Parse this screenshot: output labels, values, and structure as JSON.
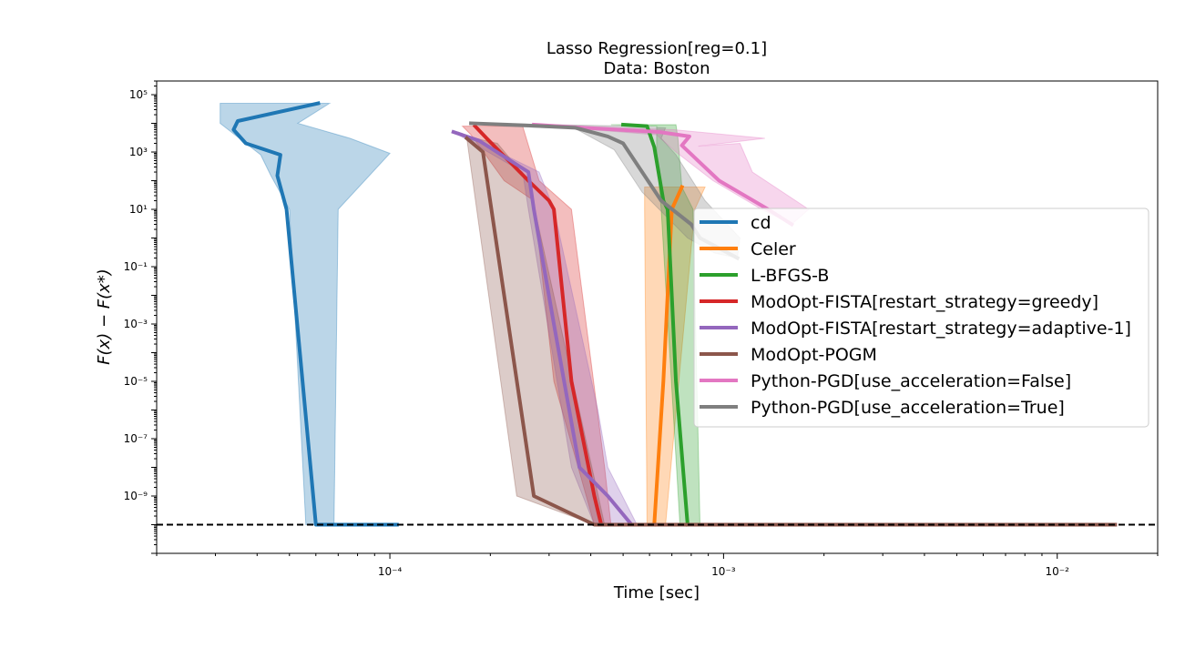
{
  "chart_data": {
    "type": "line",
    "title": "Lasso Regression[reg=0.1]",
    "subtitle": "Data: Boston",
    "xlabel": "Time [sec]",
    "ylabel": "F(x) − F(x*)",
    "xscale": "log",
    "yscale": "log",
    "xlim": [
      2e-05,
      0.02
    ],
    "ylim": [
      1e-11,
      300000
    ],
    "x_ticks": [
      {
        "value": 0.0001,
        "label": "10⁻⁴"
      },
      {
        "value": 0.001,
        "label": "10⁻³"
      },
      {
        "value": 0.01,
        "label": "10⁻²"
      }
    ],
    "y_ticks": [
      {
        "value": 1e-09,
        "label": "10⁻⁹"
      },
      {
        "value": 1e-07,
        "label": "10⁻⁷"
      },
      {
        "value": 1e-05,
        "label": "10⁻⁵"
      },
      {
        "value": 0.001,
        "label": "10⁻³"
      },
      {
        "value": 0.1,
        "label": "10⁻¹"
      },
      {
        "value": 10,
        "label": "10¹"
      },
      {
        "value": 1000,
        "label": "10³"
      },
      {
        "value": 100000,
        "label": "10⁵"
      }
    ],
    "reference_line": {
      "y": 1e-10,
      "style": "dashed",
      "color": "#000000"
    },
    "legend_position": "center-right",
    "series": [
      {
        "name": "cd",
        "color": "#1f77b4",
        "x": [
          6.1e-05,
          3.5e-05,
          3.4e-05,
          3.7e-05,
          4.7e-05,
          4.6e-05,
          4.9e-05,
          6e-05,
          6e-05,
          0.000105
        ],
        "y": [
          50000,
          12000,
          6000,
          2000,
          800,
          150,
          10,
          1e-10,
          1e-10,
          1e-10
        ],
        "band_lower": [
          [
            3.1e-05,
            50000
          ],
          [
            3.1e-05,
            10000
          ],
          [
            3.7e-05,
            2000
          ],
          [
            4.1e-05,
            800
          ],
          [
            4.4e-05,
            150
          ],
          [
            5e-05,
            10
          ],
          [
            5.6e-05,
            1e-10
          ],
          [
            0.000105,
            1e-10
          ]
        ],
        "band_upper": [
          [
            6.6e-05,
            50000
          ],
          [
            5.3e-05,
            10000
          ],
          [
            7.6e-05,
            3000
          ],
          [
            0.0001,
            900
          ],
          [
            7e-05,
            10
          ],
          [
            6.8e-05,
            1e-10
          ],
          [
            0.000105,
            1e-10
          ]
        ]
      },
      {
        "name": "Celer",
        "color": "#ff7f0e",
        "x": [
          0.00075,
          0.0007,
          0.00066,
          0.00062,
          0.00062
        ],
        "y": [
          60,
          10,
          1e-05,
          1e-10,
          1e-10
        ],
        "band_lower": [
          [
            0.00058,
            60
          ],
          [
            0.00058,
            10
          ],
          [
            0.00059,
            1e-10
          ]
        ],
        "band_upper": [
          [
            0.00088,
            60
          ],
          [
            0.00082,
            10
          ],
          [
            0.00067,
            1e-10
          ]
        ]
      },
      {
        "name": "L-BFGS-B",
        "color": "#2ca02c",
        "x": [
          0.0005,
          0.00059,
          0.00062,
          0.00066,
          0.00068,
          0.00072,
          0.00078,
          0.00078
        ],
        "y": [
          9000,
          8000,
          1500,
          20,
          10,
          1e-05,
          1e-10,
          1e-10
        ],
        "band_lower": [
          [
            0.00046,
            9000
          ],
          [
            0.00063,
            8000
          ],
          [
            0.00063,
            1000
          ],
          [
            0.00065,
            10
          ],
          [
            0.00074,
            1e-10
          ]
        ],
        "band_upper": [
          [
            0.00072,
            9000
          ],
          [
            0.00073,
            3000
          ],
          [
            0.00075,
            60
          ],
          [
            0.00081,
            10
          ],
          [
            0.00085,
            1e-10
          ]
        ]
      },
      {
        "name": "ModOpt-FISTA[restart_strategy=greedy]",
        "color": "#d62728",
        "x": [
          0.00018,
          0.000195,
          0.00026,
          0.0003,
          0.00031,
          0.00035,
          0.00041,
          0.00043,
          0.0149
        ],
        "y": [
          8000,
          3000,
          100,
          20,
          10,
          1e-05,
          1e-09,
          1e-10,
          1e-10
        ],
        "band_lower": [
          [
            0.000165,
            8000
          ],
          [
            0.000175,
            4000
          ],
          [
            0.00022,
            100
          ],
          [
            0.00027,
            20
          ],
          [
            0.00031,
            1e-05
          ],
          [
            0.00041,
            1e-10
          ],
          [
            0.0149,
            1e-10
          ]
        ],
        "band_upper": [
          [
            0.00025,
            8000
          ],
          [
            0.00028,
            100
          ],
          [
            0.00035,
            10
          ],
          [
            0.00044,
            1e-08
          ],
          [
            0.00046,
            1e-10
          ],
          [
            0.0149,
            1e-10
          ]
        ]
      },
      {
        "name": "ModOpt-FISTA[restart_strategy=adaptive-1]",
        "color": "#9467bd",
        "x": [
          0.000155,
          0.000185,
          0.00026,
          0.00027,
          0.00031,
          0.00037,
          0.00045,
          0.00053,
          0.0098
        ],
        "y": [
          5000,
          2500,
          200,
          10,
          0.001,
          1e-08,
          1e-09,
          1e-10,
          1e-10
        ],
        "band_lower": [
          [
            0.000155,
            5000
          ],
          [
            0.00025,
            200
          ],
          [
            0.00026,
            10
          ],
          [
            0.00035,
            1e-08
          ],
          [
            0.00041,
            1e-10
          ],
          [
            0.0098,
            1e-10
          ]
        ],
        "band_upper": [
          [
            0.00016,
            5000
          ],
          [
            0.00028,
            200
          ],
          [
            0.00031,
            10
          ],
          [
            0.00042,
            1e-06
          ],
          [
            0.00045,
            1e-08
          ],
          [
            0.00055,
            1e-10
          ],
          [
            0.0098,
            1e-10
          ]
        ]
      },
      {
        "name": "ModOpt-POGM",
        "color": "#8c564b",
        "x": [
          0.00017,
          0.00019,
          0.00027,
          0.00041,
          0.0149
        ],
        "y": [
          3000,
          1000,
          1e-09,
          1e-10,
          1e-10
        ],
        "band_lower": [
          [
            0.00017,
            3000
          ],
          [
            0.00024,
            1e-09
          ],
          [
            0.00041,
            1e-10
          ],
          [
            0.0149,
            1e-10
          ]
        ],
        "band_upper": [
          [
            0.00018,
            3000
          ],
          [
            0.00021,
            2000
          ],
          [
            0.00026,
            100
          ],
          [
            0.00044,
            1e-10
          ],
          [
            0.0149,
            1e-10
          ]
        ]
      },
      {
        "name": "Python-PGD[use_acceleration=False]",
        "color": "#e377c2",
        "x": [
          0.00027,
          0.00038,
          0.00064,
          0.00079,
          0.00075,
          0.00097,
          0.00136,
          0.0016
        ],
        "y": [
          9000,
          7000,
          5000,
          3500,
          1700,
          100,
          10,
          3
        ],
        "band_lower": [
          [
            0.00026,
            9000
          ],
          [
            0.00063,
            4000
          ],
          [
            0.00072,
            1000
          ],
          [
            0.00093,
            100
          ],
          [
            0.0013,
            10
          ],
          [
            0.0016,
            3
          ]
        ],
        "band_upper": [
          [
            0.00027,
            9000
          ],
          [
            0.00071,
            6000
          ],
          [
            0.00133,
            3000
          ],
          [
            0.00084,
            1600
          ],
          [
            0.00112,
            2000
          ],
          [
            0.00122,
            200
          ],
          [
            0.0018,
            10
          ]
        ]
      },
      {
        "name": "Python-PGD[use_acceleration=True]",
        "color": "#7f7f7f",
        "x": [
          0.000175,
          0.000255,
          0.00036,
          0.00045,
          0.0005,
          0.00065,
          0.0008,
          0.00085,
          0.0011
        ],
        "y": [
          10000,
          8500,
          7000,
          3500,
          2000,
          20,
          3,
          1,
          0.2
        ],
        "band_lower": [
          [
            0.00022,
            8000
          ],
          [
            0.00036,
            6500
          ],
          [
            0.00047,
            1200
          ],
          [
            0.00057,
            40
          ],
          [
            0.00078,
            1
          ],
          [
            0.00094,
            0.3
          ]
        ],
        "band_upper": [
          [
            0.000175,
            10000
          ],
          [
            0.00054,
            8000
          ],
          [
            0.00067,
            7000
          ],
          [
            0.00065,
            3000
          ],
          [
            0.00072,
            800
          ],
          [
            0.00088,
            20
          ],
          [
            0.00112,
            1
          ],
          [
            0.0011,
            0.2
          ]
        ]
      }
    ]
  }
}
